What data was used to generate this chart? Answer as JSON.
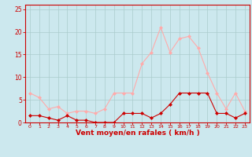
{
  "hours": [
    0,
    1,
    2,
    3,
    4,
    5,
    6,
    7,
    8,
    9,
    10,
    11,
    12,
    13,
    14,
    15,
    16,
    17,
    18,
    19,
    20,
    21,
    22,
    23
  ],
  "vent_moyen": [
    1.5,
    1.5,
    1.0,
    0.5,
    1.5,
    0.5,
    0.5,
    0.0,
    0.0,
    0.0,
    2.0,
    2.0,
    2.0,
    1.0,
    2.0,
    4.0,
    6.5,
    6.5,
    6.5,
    6.5,
    2.0,
    2.0,
    1.0,
    2.0
  ],
  "rafales": [
    6.5,
    5.5,
    3.0,
    3.5,
    2.0,
    2.5,
    2.5,
    2.0,
    3.0,
    6.5,
    6.5,
    6.5,
    13.0,
    15.5,
    21.0,
    15.5,
    18.5,
    19.0,
    16.5,
    11.0,
    6.5,
    3.0,
    6.5,
    2.5
  ],
  "color_moyen": "#cc0000",
  "color_rafales": "#ffaaaa",
  "bg_color": "#cce8ee",
  "grid_color": "#aacccc",
  "xlabel": "Vent moyen/en rafales ( km/h )",
  "yticks": [
    0,
    5,
    10,
    15,
    20,
    25
  ],
  "ylim": [
    0,
    26
  ],
  "xlim": [
    -0.5,
    23.5
  ]
}
